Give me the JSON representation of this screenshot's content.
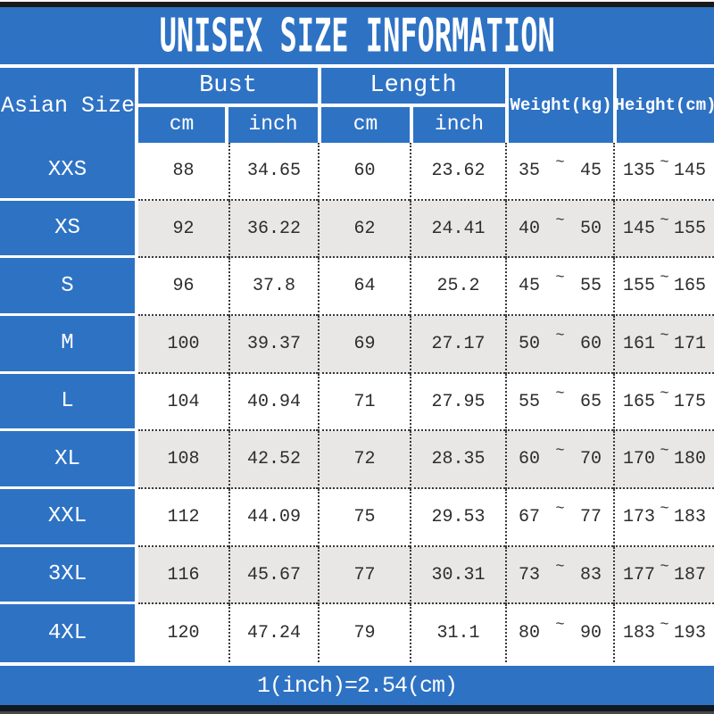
{
  "title": "UNISEX SIZE INFORMATION",
  "footer_note": "1(inch)=2.54(cm)",
  "labels": {
    "size_column": "Asian Size",
    "bust_group": "Bust",
    "length_group": "Length",
    "weight_column": "Weight(kg)",
    "height_column": "Height(cm)",
    "cm_unit": "cm",
    "inch_unit": "inch",
    "range_separator": "~"
  },
  "colors": {
    "blue": "#2e72c4",
    "alt_row": "#e8e7e5",
    "text": "#2d2d2d",
    "edge_bar": "#191919"
  },
  "chart_data": {
    "type": "table",
    "title": "UNISEX SIZE INFORMATION",
    "columns": [
      "Asian Size",
      "Bust cm",
      "Bust inch",
      "Length cm",
      "Length inch",
      "Weight(kg)",
      "Height(cm)"
    ],
    "rows": [
      {
        "size": "XXS",
        "bust_cm": "88",
        "bust_inch": "34.65",
        "length_cm": "60",
        "length_inch": "23.62",
        "weight_min": "35",
        "weight_max": "45",
        "height_min": "135",
        "height_max": "145"
      },
      {
        "size": "XS",
        "bust_cm": "92",
        "bust_inch": "36.22",
        "length_cm": "62",
        "length_inch": "24.41",
        "weight_min": "40",
        "weight_max": "50",
        "height_min": "145",
        "height_max": "155"
      },
      {
        "size": "S",
        "bust_cm": "96",
        "bust_inch": "37.8",
        "length_cm": "64",
        "length_inch": "25.2",
        "weight_min": "45",
        "weight_max": "55",
        "height_min": "155",
        "height_max": "165"
      },
      {
        "size": "M",
        "bust_cm": "100",
        "bust_inch": "39.37",
        "length_cm": "69",
        "length_inch": "27.17",
        "weight_min": "50",
        "weight_max": "60",
        "height_min": "161",
        "height_max": "171"
      },
      {
        "size": "L",
        "bust_cm": "104",
        "bust_inch": "40.94",
        "length_cm": "71",
        "length_inch": "27.95",
        "weight_min": "55",
        "weight_max": "65",
        "height_min": "165",
        "height_max": "175"
      },
      {
        "size": "XL",
        "bust_cm": "108",
        "bust_inch": "42.52",
        "length_cm": "72",
        "length_inch": "28.35",
        "weight_min": "60",
        "weight_max": "70",
        "height_min": "170",
        "height_max": "180"
      },
      {
        "size": "XXL",
        "bust_cm": "112",
        "bust_inch": "44.09",
        "length_cm": "75",
        "length_inch": "29.53",
        "weight_min": "67",
        "weight_max": "77",
        "height_min": "173",
        "height_max": "183"
      },
      {
        "size": "3XL",
        "bust_cm": "116",
        "bust_inch": "45.67",
        "length_cm": "77",
        "length_inch": "30.31",
        "weight_min": "73",
        "weight_max": "83",
        "height_min": "177",
        "height_max": "187"
      },
      {
        "size": "4XL",
        "bust_cm": "120",
        "bust_inch": "47.24",
        "length_cm": "79",
        "length_inch": "31.1",
        "weight_min": "80",
        "weight_max": "90",
        "height_min": "183",
        "height_max": "193"
      }
    ]
  }
}
